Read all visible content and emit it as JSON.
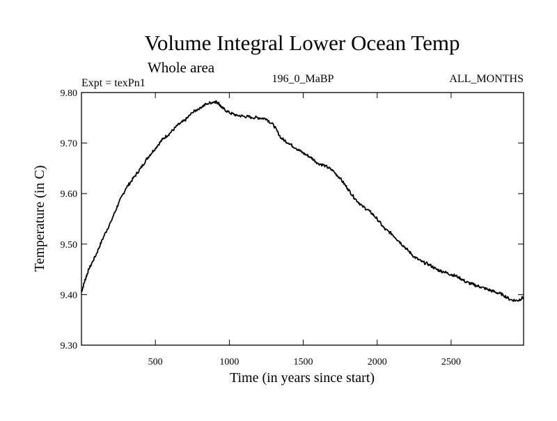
{
  "chart_data": {
    "type": "line",
    "title": "Volume Integral Lower Ocean Temp",
    "subtitle": "Whole area",
    "experiment_label": "Expt = texPn1",
    "center_label": "196_0_MaBP",
    "right_label": "ALL_MONTHS",
    "xlabel": "Time (in years since start)",
    "ylabel": "Temperature (in C)",
    "xlim": [
      0,
      2990
    ],
    "ylim": [
      9.3,
      9.8
    ],
    "x_ticks": [
      500,
      1000,
      1500,
      2000,
      2500
    ],
    "x_tick_labels": [
      "500",
      "1000",
      "1500",
      "2000",
      "2500"
    ],
    "y_ticks": [
      9.3,
      9.4,
      9.5,
      9.6,
      9.7,
      9.8
    ],
    "y_tick_labels": [
      "9.30",
      "9.40",
      "9.50",
      "9.60",
      "9.70",
      "9.80"
    ],
    "grid": false,
    "series_color": "#000000",
    "series": [
      {
        "x": [
          0,
          25,
          50,
          100,
          150,
          200,
          250,
          300,
          350,
          400,
          450,
          500,
          550,
          600,
          650,
          700,
          750,
          800,
          850,
          900,
          925,
          950,
          1000,
          1050,
          1100,
          1150,
          1200,
          1250,
          1300,
          1350,
          1400,
          1450,
          1500,
          1550,
          1600,
          1650,
          1700,
          1750,
          1800,
          1850,
          1900,
          1950,
          2000,
          2050,
          2100,
          2150,
          2200,
          2250,
          2300,
          2350,
          2400,
          2450,
          2500,
          2550,
          2600,
          2650,
          2700,
          2750,
          2800,
          2850,
          2900,
          2950,
          2990
        ],
        "y": [
          9.405,
          9.43,
          9.45,
          9.48,
          9.515,
          9.545,
          9.58,
          9.61,
          9.63,
          9.65,
          9.672,
          9.69,
          9.708,
          9.72,
          9.735,
          9.745,
          9.76,
          9.77,
          9.778,
          9.782,
          9.78,
          9.77,
          9.76,
          9.755,
          9.753,
          9.751,
          9.75,
          9.748,
          9.735,
          9.71,
          9.7,
          9.69,
          9.68,
          9.672,
          9.66,
          9.655,
          9.645,
          9.63,
          9.61,
          9.59,
          9.575,
          9.565,
          9.55,
          9.53,
          9.52,
          9.505,
          9.49,
          9.475,
          9.465,
          9.46,
          9.45,
          9.445,
          9.44,
          9.435,
          9.425,
          9.42,
          9.415,
          9.41,
          9.405,
          9.4,
          9.39,
          9.388,
          9.395
        ]
      }
    ]
  }
}
